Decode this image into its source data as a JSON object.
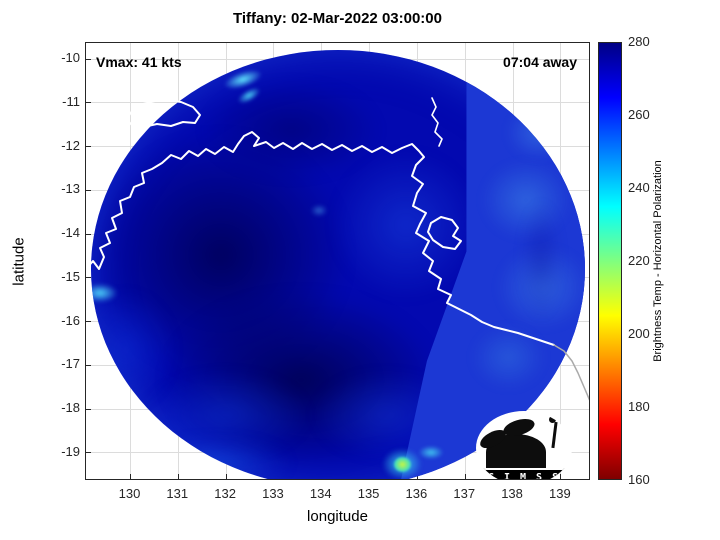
{
  "title": "Tiffany: 02-Mar-2022 03:00:00",
  "annotations": {
    "vmax": "Vmax: 41 kts",
    "away": "07:04 away"
  },
  "axes": {
    "xlabel": "longitude",
    "ylabel": "latitude",
    "x_ticks": [
      130,
      131,
      132,
      133,
      134,
      135,
      136,
      137,
      138,
      139
    ],
    "y_ticks": [
      -10,
      -11,
      -12,
      -13,
      -14,
      -15,
      -16,
      -17,
      -18,
      -19
    ],
    "x_range": [
      129.07,
      139.63
    ],
    "y_range": [
      -19.64,
      -9.63
    ]
  },
  "colorbar": {
    "label": "Brightness Temp - Horizontal Polarization",
    "min": 160,
    "max": 280,
    "ticks": [
      160,
      180,
      200,
      220,
      240,
      260,
      280
    ],
    "stops": [
      {
        "v": 280,
        "c": "#000085"
      },
      {
        "v": 265,
        "c": "#0000ff"
      },
      {
        "v": 235,
        "c": "#00ffff"
      },
      {
        "v": 205,
        "c": "#ffff00"
      },
      {
        "v": 175,
        "c": "#ff0000"
      },
      {
        "v": 160,
        "c": "#7f0000"
      }
    ]
  },
  "logo": {
    "text": "C I M S S"
  },
  "chart_data": {
    "type": "heatmap",
    "title": "Tiffany: 02-Mar-2022 03:00:00",
    "storm_name": "Tiffany",
    "valid_time": "02-Mar-2022 03:00:00",
    "vmax_kts": 41,
    "time_offset_label": "07:04 away",
    "xlabel": "longitude",
    "ylabel": "latitude",
    "xlim": [
      129.07,
      139.63
    ],
    "ylim": [
      -19.64,
      -9.63
    ],
    "x_ticks": [
      130,
      131,
      132,
      133,
      134,
      135,
      136,
      137,
      138,
      139
    ],
    "y_ticks": [
      -10,
      -11,
      -12,
      -13,
      -14,
      -15,
      -16,
      -17,
      -18,
      -19
    ],
    "grid": true,
    "colorbar": {
      "label": "Brightness Temp - Horizontal Polarization",
      "min": 160,
      "max": 280,
      "ticks": [
        160,
        180,
        200,
        220,
        240,
        260,
        280
      ],
      "colormap": "reversed-jet",
      "position": "right"
    },
    "swath": {
      "shape": "circular",
      "center_lon": 134.4,
      "center_lat": -14.6,
      "radius_deg": 5.2
    },
    "values_summary": "Most of the circular microwave swath is 265-280 (dark blue); an eastern segment beyond a diagonal scan seam near 136.5E is slightly warmer (~255-265, lighter blue with cyan mottling).",
    "features": [
      {
        "lon": 132.2,
        "lat": -10.8,
        "approx_value": 240,
        "desc": "bright cyan streak north of Tiwi Islands"
      },
      {
        "lon": 129.2,
        "lat": -15.2,
        "approx_value": 245,
        "desc": "cyan patch at western swath edge"
      },
      {
        "lon": 135.5,
        "lat": -19.3,
        "approx_value": 205,
        "desc": "small yellow-green warm spot at southern swath edge"
      },
      {
        "lon": 136.2,
        "lat": -19.0,
        "approx_value": 240,
        "desc": "cyan spot at southern swath edge"
      },
      {
        "lon": 133.0,
        "lat": -14.5,
        "approx_value": 278,
        "desc": "large dark navy region over west-central swath"
      },
      {
        "lon": 137.8,
        "lat": -13.0,
        "approx_value": 258,
        "desc": "mottled lighter blue eastern swath segment"
      }
    ],
    "overlays": [
      "white coastline of northern Australia (Top End, Gulf of Carpentaria, Tiwi Islands, Groote Eylandt)",
      "CIMSS logo bottom right"
    ]
  }
}
